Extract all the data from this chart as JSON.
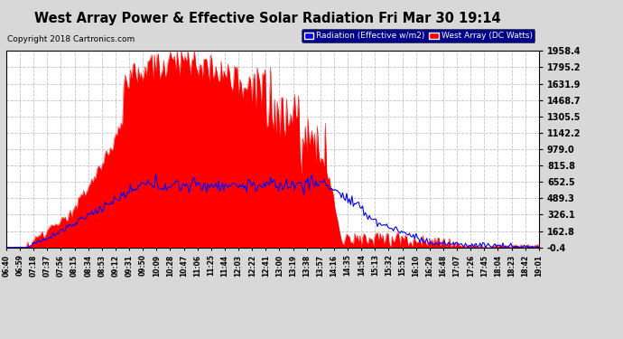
{
  "title": "West Array Power & Effective Solar Radiation Fri Mar 30 19:14",
  "copyright": "Copyright 2018 Cartronics.com",
  "legend_labels": [
    "Radiation (Effective w/m2)",
    "West Array (DC Watts)"
  ],
  "legend_colors": [
    "blue",
    "red"
  ],
  "ylim": [
    -0.4,
    1958.4
  ],
  "yticks": [
    -0.4,
    162.8,
    326.1,
    489.3,
    652.5,
    815.8,
    979.0,
    1142.2,
    1305.5,
    1468.7,
    1631.9,
    1795.2,
    1958.4
  ],
  "bg_color": "#d8d8d8",
  "plot_bg_color": "#ffffff",
  "grid_color": "#aaaaaa",
  "title_color": "#000000",
  "title_fontsize": 11,
  "red_color": "#ff0000",
  "blue_color": "#0000ff",
  "x_tick_labels": [
    "06:40",
    "06:59",
    "07:18",
    "07:37",
    "07:56",
    "08:15",
    "08:34",
    "08:53",
    "09:12",
    "09:31",
    "09:50",
    "10:09",
    "10:28",
    "10:47",
    "11:06",
    "11:25",
    "11:44",
    "12:03",
    "12:22",
    "12:41",
    "13:00",
    "13:19",
    "13:38",
    "13:57",
    "14:16",
    "14:35",
    "14:54",
    "15:13",
    "15:32",
    "15:51",
    "16:10",
    "16:29",
    "16:48",
    "17:07",
    "17:26",
    "17:45",
    "18:04",
    "18:23",
    "18:42",
    "19:01"
  ],
  "num_points": 400
}
